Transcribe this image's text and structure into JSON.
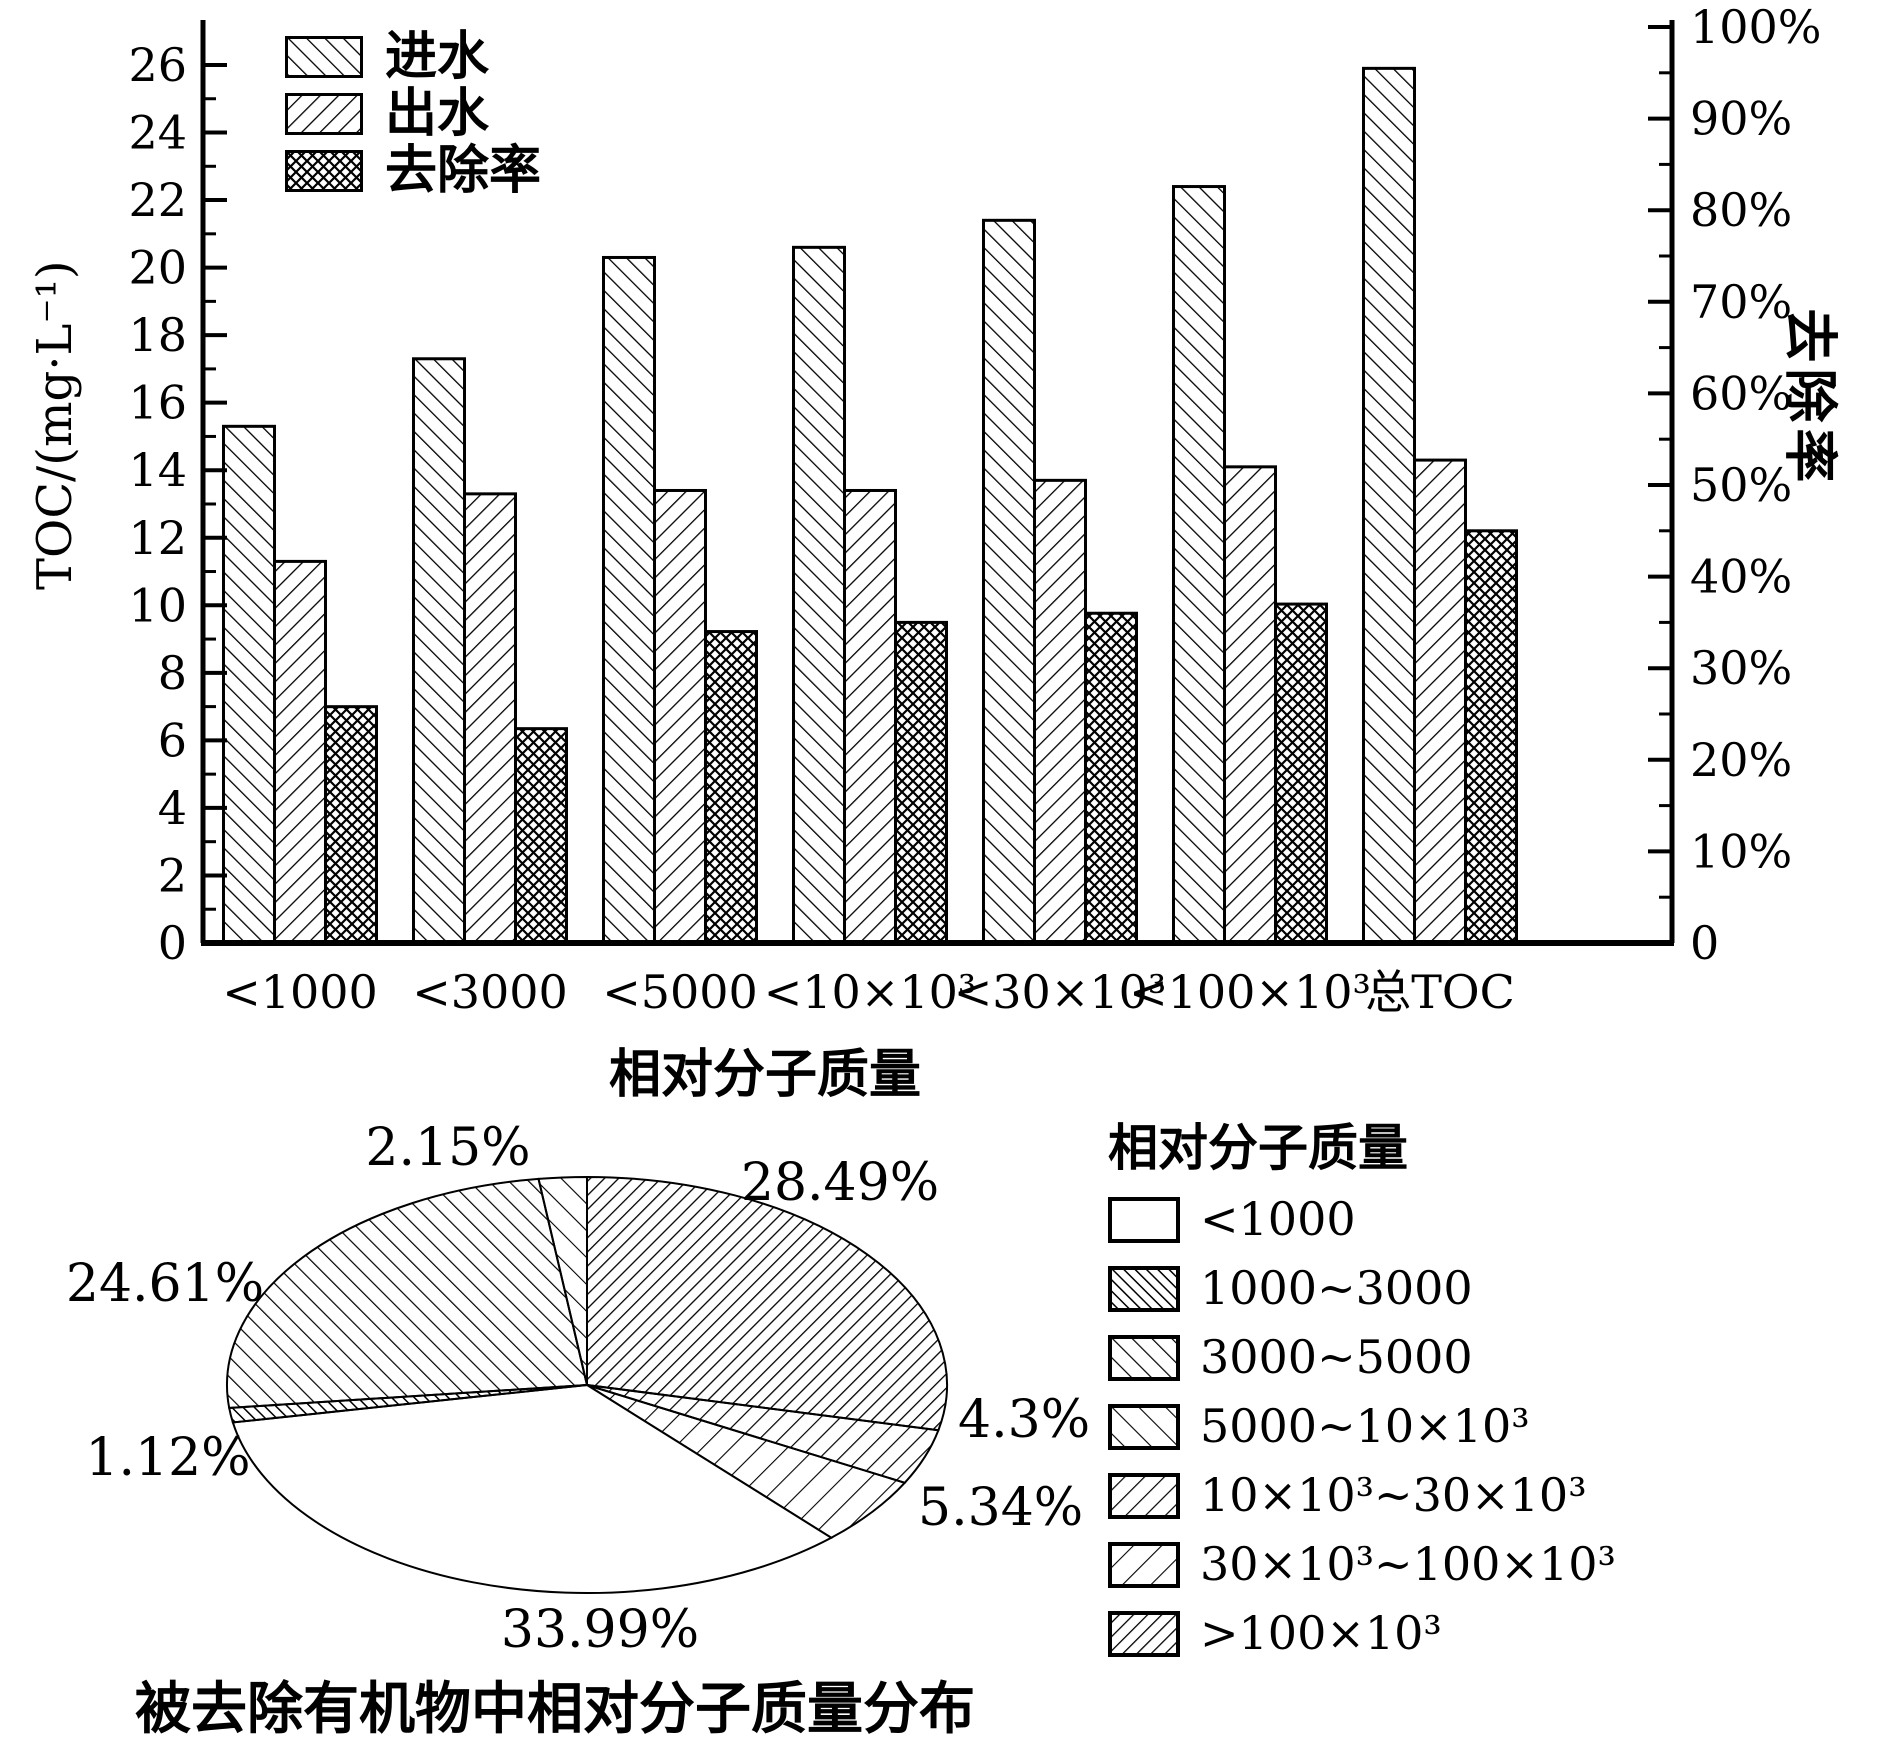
{
  "figure": {
    "background": "#ffffff",
    "ink_color": "#000000"
  },
  "chart_data": [
    {
      "type": "bar",
      "categories": [
        "<1000",
        "<3000",
        "<5000",
        "<10×10³",
        "<30×10³",
        "<100×10³",
        "总TOC"
      ],
      "xlabel": "相对分子质量",
      "left_axis": {
        "label": "TOC/(mg·L⁻¹)",
        "min": 0,
        "max": 26,
        "major_step": 2,
        "minor_step": 1
      },
      "right_axis": {
        "label": "去除率",
        "min": 0,
        "max": 100,
        "major_step": 10,
        "minor_step": 5,
        "tick_suffix": "%",
        "zero_label": "0"
      },
      "grid": false,
      "legend_position": "inside-top-left",
      "series": [
        {
          "name": "进水",
          "axis": "left",
          "unit": "mg·L⁻¹",
          "pattern": "slash",
          "values": [
            15.3,
            17.3,
            20.3,
            20.6,
            21.4,
            22.4,
            25.9
          ]
        },
        {
          "name": "出水",
          "axis": "left",
          "unit": "mg·L⁻¹",
          "pattern": "backslash",
          "values": [
            11.3,
            13.3,
            13.4,
            13.4,
            13.7,
            14.1,
            14.3
          ]
        },
        {
          "name": "去除率",
          "axis": "right",
          "unit": "%",
          "pattern": "crosshatch",
          "values": [
            25.8,
            23.4,
            34,
            35,
            36,
            37,
            45
          ]
        }
      ]
    },
    {
      "type": "pie",
      "caption": "被去除有机物中相对分子质量分布",
      "legend_title": "相对分子质量",
      "start_angle_deg": 90,
      "direction": "clockwise",
      "slices": [
        {
          "category": ">100×10³",
          "percent": 28.49,
          "pct_label": "28.49%",
          "pattern": "backslash-dense"
        },
        {
          "category": "10×10³~30×10³",
          "percent": 4.3,
          "pct_label": "4.3%",
          "pattern": "backslash-medium"
        },
        {
          "category": "30×10³~100×10³",
          "percent": 5.34,
          "pct_label": "5.34%",
          "pattern": "backslash-sparse"
        },
        {
          "category": "<1000",
          "percent": 33.99,
          "pct_label": "33.99%",
          "pattern": "none"
        },
        {
          "category": "1000~3000",
          "percent": 1.12,
          "pct_label": "1.12%",
          "pattern": "slash-dense"
        },
        {
          "category": "3000~5000",
          "percent": 24.61,
          "pct_label": "24.61%",
          "pattern": "slash-medium"
        },
        {
          "category": "5000~10×10³",
          "percent": 2.15,
          "pct_label": "2.15%",
          "pattern": "slash-sparse"
        }
      ],
      "legend": [
        {
          "label": "<1000",
          "pattern": "none"
        },
        {
          "label": "1000~3000",
          "pattern": "slash-dense"
        },
        {
          "label": "3000~5000",
          "pattern": "slash-medium"
        },
        {
          "label": "5000~10×10³",
          "pattern": "slash-sparse"
        },
        {
          "label": "10×10³~30×10³",
          "pattern": "backslash-medium"
        },
        {
          "label": "30×10³~100×10³",
          "pattern": "backslash-sparse"
        },
        {
          "label": ">100×10³",
          "pattern": "backslash-dense"
        }
      ]
    }
  ]
}
